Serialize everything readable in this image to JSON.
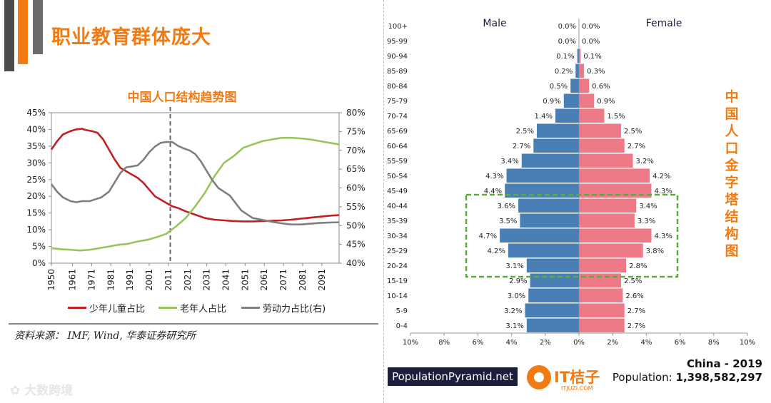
{
  "page": {
    "title": "职业教育群体庞大",
    "source": "资料来源： IMF, Wind, 华泰证券研究所",
    "watermark": "大数跨境",
    "side_title": "中国人口金字塔结构图",
    "pyramid_site": "PopulationPyramid.net",
    "brand_name": "IT桔子",
    "brand_sub": "ITJUZI.COM",
    "country_year": "China - 2019",
    "population_label": "Population:",
    "population_value": "1,398,582,297",
    "colors": {
      "accent": "#f27a12",
      "male": "#4a7fb5",
      "female": "#ee7a88",
      "children": "#c0201f",
      "elderly": "#96c65a",
      "labor": "#7f7f7f",
      "highlight": "#5aad3c"
    }
  },
  "chart_data": [
    {
      "type": "line",
      "title": "中国人口结构趋势图",
      "x_ticks": [
        "1950",
        "1961",
        "1971",
        "1981",
        "1991",
        "2001",
        "2011",
        "2021",
        "2031",
        "2041",
        "2051",
        "2061",
        "2071",
        "2081",
        "2091"
      ],
      "xlim": [
        1950,
        2100
      ],
      "ylim_left": [
        0,
        45
      ],
      "ylim_right": [
        40,
        80
      ],
      "left_ticks": [
        "0%",
        "5%",
        "10%",
        "15%",
        "20%",
        "25%",
        "30%",
        "35%",
        "40%",
        "45%"
      ],
      "right_ticks": [
        "40%",
        "45%",
        "50%",
        "55%",
        "60%",
        "65%",
        "70%",
        "75%",
        "80%"
      ],
      "vline_x": 2012,
      "series": [
        {
          "name": "少年儿童占比",
          "axis": "left",
          "color": "#c0201f",
          "x": [
            1950,
            1953,
            1956,
            1960,
            1963,
            1966,
            1968,
            1971,
            1974,
            1977,
            1980,
            1983,
            1986,
            1989,
            1992,
            1995,
            1998,
            2001,
            2004,
            2007,
            2010,
            2013,
            2016,
            2020,
            2025,
            2030,
            2035,
            2040,
            2045,
            2050,
            2055,
            2060,
            2065,
            2070,
            2075,
            2080,
            2085,
            2090,
            2095,
            2100
          ],
          "values": [
            34,
            36.5,
            38.5,
            39.5,
            40,
            40.2,
            39.8,
            39.5,
            39,
            37,
            34,
            31,
            28.5,
            27.5,
            26.5,
            25.5,
            24,
            22,
            20,
            19,
            18,
            17,
            16.5,
            15.5,
            14.5,
            13.5,
            13,
            12.8,
            12.6,
            12.5,
            12.5,
            12.6,
            12.7,
            12.8,
            13,
            13.3,
            13.6,
            13.9,
            14.2,
            14.4
          ]
        },
        {
          "name": "老年人占比",
          "axis": "left",
          "color": "#96c65a",
          "x": [
            1950,
            1955,
            1960,
            1965,
            1970,
            1975,
            1980,
            1985,
            1990,
            1995,
            2000,
            2005,
            2010,
            2015,
            2020,
            2025,
            2030,
            2035,
            2040,
            2045,
            2050,
            2055,
            2060,
            2065,
            2070,
            2075,
            2080,
            2085,
            2090,
            2095,
            2100
          ],
          "values": [
            4.5,
            4.2,
            4,
            3.8,
            4,
            4.5,
            5,
            5.5,
            5.8,
            6.5,
            7,
            7.8,
            8.8,
            11,
            13.5,
            17,
            21,
            26,
            30,
            32,
            34.5,
            35.5,
            36.5,
            37,
            37.5,
            37.5,
            37.3,
            37,
            36.5,
            36,
            35.5
          ]
        },
        {
          "name": "劳动力占比(右)",
          "axis": "right",
          "color": "#7f7f7f",
          "x": [
            1950,
            1953,
            1956,
            1960,
            1963,
            1966,
            1970,
            1973,
            1976,
            1980,
            1983,
            1986,
            1989,
            1992,
            1995,
            1998,
            2001,
            2004,
            2007,
            2010,
            2013,
            2016,
            2019,
            2022,
            2025,
            2028,
            2031,
            2034,
            2037,
            2040,
            2043,
            2046,
            2049,
            2052,
            2055,
            2060,
            2065,
            2070,
            2075,
            2080,
            2085,
            2090,
            2095,
            2100
          ],
          "values": [
            61,
            59,
            57.5,
            56.5,
            56.2,
            56.5,
            56.5,
            57,
            57.5,
            59,
            61.5,
            64,
            65.5,
            65.7,
            66,
            67.5,
            69.5,
            71,
            72,
            72.2,
            72.2,
            71.2,
            70.5,
            70,
            69,
            67,
            64.5,
            62,
            60,
            59,
            58,
            56,
            54,
            53,
            52,
            51.5,
            51,
            50.6,
            50.3,
            50.3,
            50.5,
            50.7,
            50.8,
            50.9
          ]
        }
      ]
    },
    {
      "type": "bar",
      "subtype": "population-pyramid",
      "male_label": "Male",
      "female_label": "Female",
      "categories": [
        "100+",
        "95-99",
        "90-94",
        "85-89",
        "80-84",
        "75-79",
        "70-74",
        "65-69",
        "60-64",
        "55-59",
        "50-54",
        "45-49",
        "40-44",
        "35-39",
        "30-34",
        "25-29",
        "20-24",
        "15-19",
        "10-14",
        "5-9",
        "0-4"
      ],
      "series": [
        {
          "name": "Male",
          "values": [
            0.0,
            0.0,
            0.1,
            0.2,
            0.5,
            0.9,
            1.4,
            2.5,
            2.7,
            3.4,
            4.3,
            4.4,
            3.6,
            3.5,
            4.7,
            4.2,
            3.1,
            2.9,
            3.0,
            3.2,
            3.1
          ]
        },
        {
          "name": "Female",
          "values": [
            0.0,
            0.0,
            0.1,
            0.3,
            0.6,
            0.9,
            1.5,
            2.5,
            2.7,
            3.2,
            4.2,
            4.3,
            3.4,
            3.3,
            4.3,
            3.8,
            2.8,
            2.5,
            2.6,
            2.7,
            2.7
          ]
        }
      ],
      "x_ticks": [
        "10%",
        "8%",
        "6%",
        "4%",
        "2%",
        "0%",
        "2%",
        "4%",
        "6%",
        "8%",
        "10%"
      ],
      "xlim": [
        -10,
        10
      ],
      "highlight_range": [
        "40-44",
        "20-24"
      ]
    }
  ]
}
